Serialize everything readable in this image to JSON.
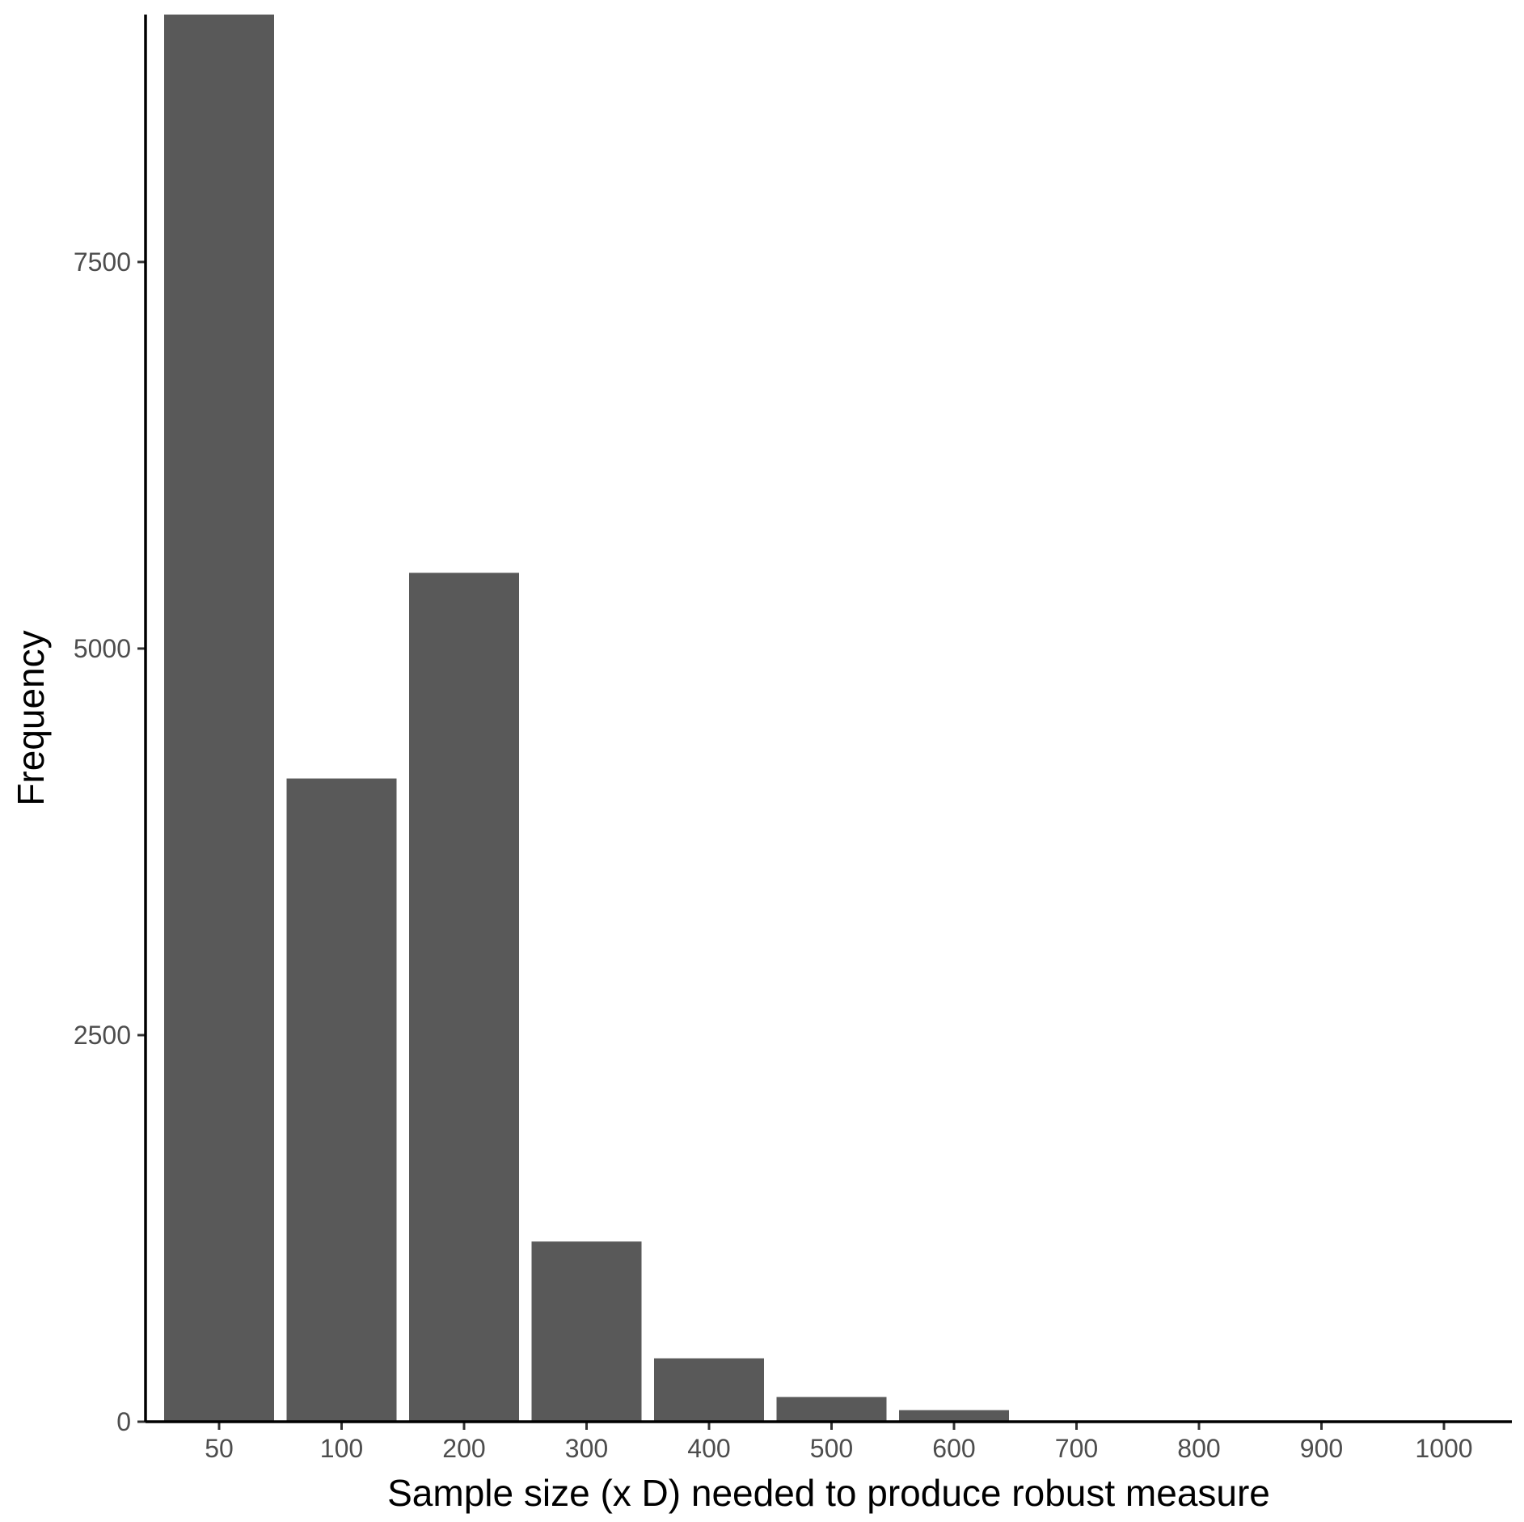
{
  "chart_data": {
    "type": "bar",
    "categories": [
      "50",
      "100",
      "200",
      "300",
      "400",
      "500",
      "600",
      "700",
      "800",
      "900",
      "1000"
    ],
    "values": [
      9100,
      4160,
      5490,
      1165,
      410,
      160,
      75,
      0,
      0,
      0,
      0
    ],
    "xlabel": "Sample size (x D) needed to produce robust measure",
    "ylabel": "Frequency",
    "ylim": [
      0,
      9100
    ],
    "yticks": [
      0,
      2500,
      5000,
      7500
    ],
    "ytick_labels": [
      "0",
      "2500",
      "5000",
      "7500"
    ],
    "bar_color": "#595959",
    "grid": false,
    "legend": "none"
  }
}
